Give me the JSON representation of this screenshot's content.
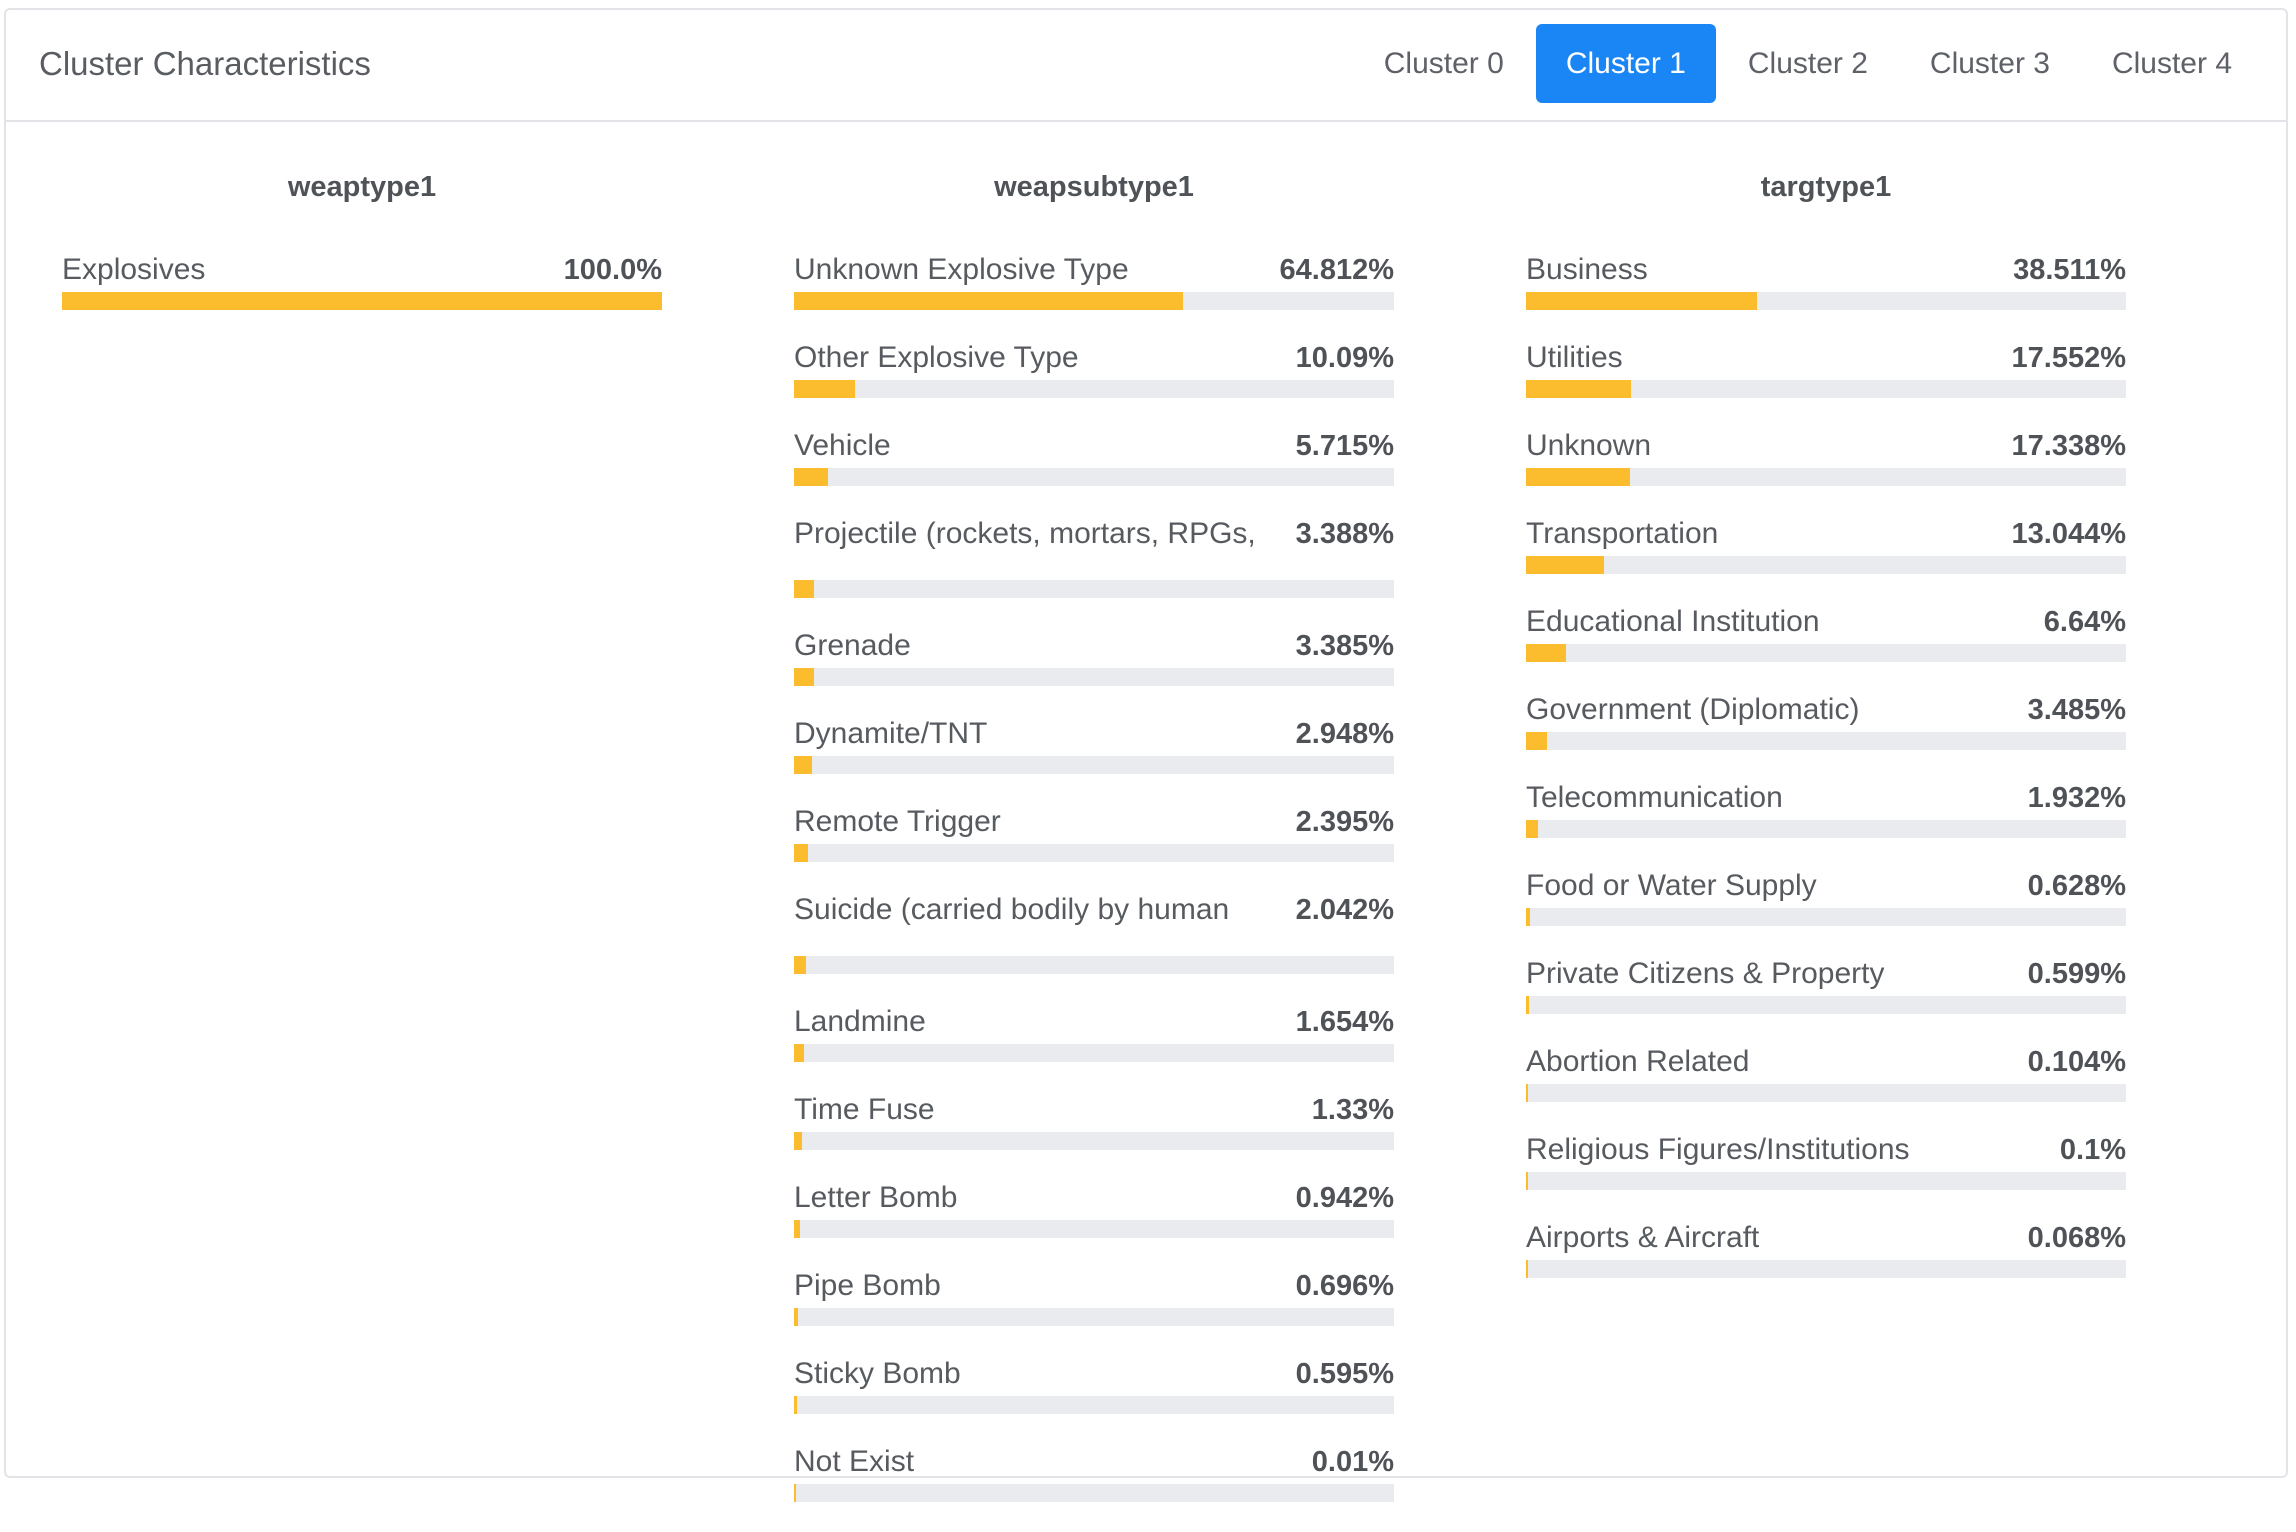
{
  "header": {
    "title": "Cluster Characteristics",
    "tabs": [
      {
        "label": "Cluster 0",
        "active": false
      },
      {
        "label": "Cluster 1",
        "active": true
      },
      {
        "label": "Cluster 2",
        "active": false
      },
      {
        "label": "Cluster 3",
        "active": false
      },
      {
        "label": "Cluster 4",
        "active": false
      }
    ]
  },
  "colors": {
    "accent": "#1a86f6",
    "bar_fill": "#fbbd2e",
    "bar_track": "#e9ebee"
  },
  "columns": [
    {
      "title": "weaptype1",
      "items": [
        {
          "label": "Explosives",
          "value": "100.0%",
          "percent": 100.0
        }
      ]
    },
    {
      "title": "weapsubtype1",
      "items": [
        {
          "label": "Unknown Explosive Type",
          "value": "64.812%",
          "percent": 64.812
        },
        {
          "label": "Other Explosive Type",
          "value": "10.09%",
          "percent": 10.09
        },
        {
          "label": "Vehicle",
          "value": "5.715%",
          "percent": 5.715
        },
        {
          "label": "Projectile (rockets, mortars, RPGs,",
          "value": "3.388%",
          "percent": 3.388,
          "wrap": true
        },
        {
          "label": "Grenade",
          "value": "3.385%",
          "percent": 3.385
        },
        {
          "label": "Dynamite/TNT",
          "value": "2.948%",
          "percent": 2.948
        },
        {
          "label": "Remote Trigger",
          "value": "2.395%",
          "percent": 2.395
        },
        {
          "label": "Suicide (carried bodily by human",
          "value": "2.042%",
          "percent": 2.042,
          "wrap": true
        },
        {
          "label": "Landmine",
          "value": "1.654%",
          "percent": 1.654
        },
        {
          "label": "Time Fuse",
          "value": "1.33%",
          "percent": 1.33
        },
        {
          "label": "Letter Bomb",
          "value": "0.942%",
          "percent": 0.942
        },
        {
          "label": "Pipe Bomb",
          "value": "0.696%",
          "percent": 0.696
        },
        {
          "label": "Sticky Bomb",
          "value": "0.595%",
          "percent": 0.595
        },
        {
          "label": "Not Exist",
          "value": "0.01%",
          "percent": 0.01
        }
      ]
    },
    {
      "title": "targtype1",
      "items": [
        {
          "label": "Business",
          "value": "38.511%",
          "percent": 38.511
        },
        {
          "label": "Utilities",
          "value": "17.552%",
          "percent": 17.552
        },
        {
          "label": "Unknown",
          "value": "17.338%",
          "percent": 17.338
        },
        {
          "label": "Transportation",
          "value": "13.044%",
          "percent": 13.044
        },
        {
          "label": "Educational Institution",
          "value": "6.64%",
          "percent": 6.64
        },
        {
          "label": "Government (Diplomatic)",
          "value": "3.485%",
          "percent": 3.485
        },
        {
          "label": "Telecommunication",
          "value": "1.932%",
          "percent": 1.932
        },
        {
          "label": "Food or Water Supply",
          "value": "0.628%",
          "percent": 0.628
        },
        {
          "label": "Private Citizens & Property",
          "value": "0.599%",
          "percent": 0.599
        },
        {
          "label": "Abortion Related",
          "value": "0.104%",
          "percent": 0.104
        },
        {
          "label": "Religious Figures/Institutions",
          "value": "0.1%",
          "percent": 0.1
        },
        {
          "label": "Airports & Aircraft",
          "value": "0.068%",
          "percent": 0.068
        }
      ]
    }
  ]
}
